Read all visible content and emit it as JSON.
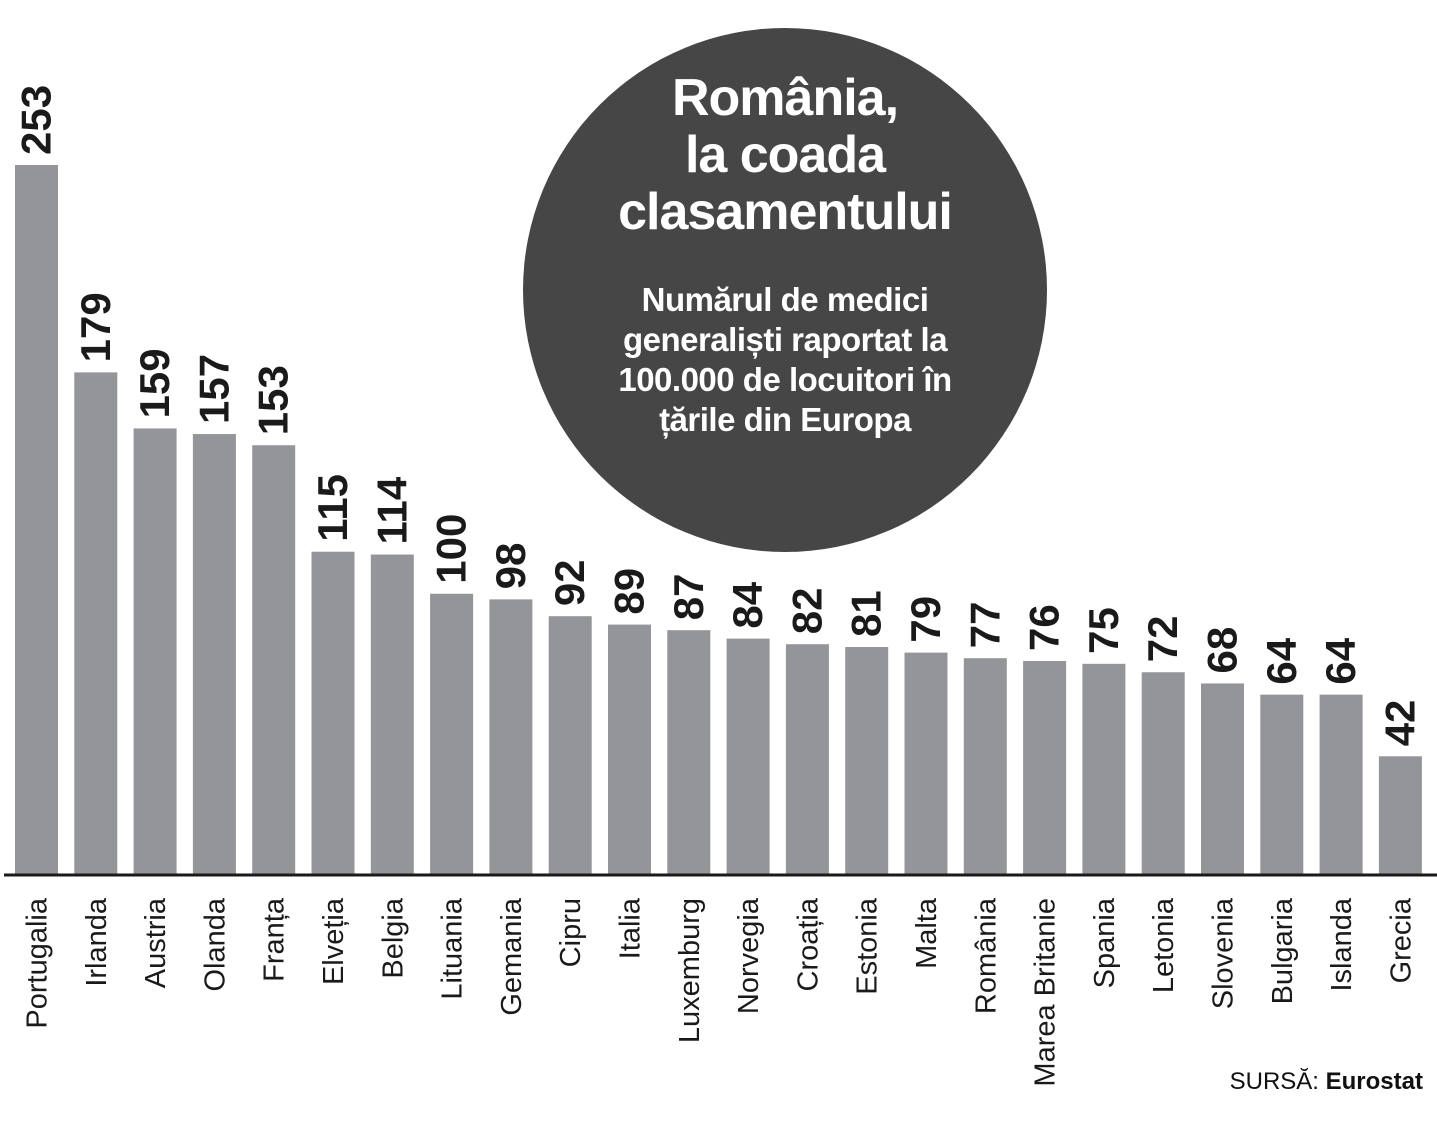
{
  "chart_data": {
    "type": "bar",
    "title": "România, la coada clasamentului",
    "subtitle": "Numărul de medici generaliști raportat la 100.000 de locuitori în țările din Europa",
    "categories": [
      "Portugalia",
      "Irlanda",
      "Austria",
      "Olanda",
      "Franța",
      "Elveția",
      "Belgia",
      "Lituania",
      "Gemania",
      "Cipru",
      "Italia",
      "Luxemburg",
      "Norvegia",
      "Croația",
      "Estonia",
      "Malta",
      "România",
      "Marea Britanie",
      "Spania",
      "Letonia",
      "Slovenia",
      "Bulgaria",
      "Islanda",
      "Grecia"
    ],
    "values": [
      253,
      179,
      159,
      157,
      153,
      115,
      114,
      100,
      98,
      92,
      89,
      87,
      84,
      82,
      81,
      79,
      77,
      76,
      75,
      72,
      68,
      64,
      64,
      42
    ],
    "data_labels": [
      "253",
      "179",
      "159",
      "157",
      "153",
      "115",
      "114",
      "100",
      "98",
      "92",
      "89",
      "87",
      "84",
      "82",
      "81",
      "79",
      "77",
      "76",
      "75",
      "72",
      "68",
      "64",
      "64",
      "42"
    ],
    "ylim": [
      0,
      253
    ],
    "grid": false,
    "bar_color": "#939598",
    "label_color": "#1a1a1a",
    "axis_color": "#1a1a1a"
  },
  "title_lines": [
    "România,",
    "la coada",
    "clasamentului"
  ],
  "subtitle_lines": [
    "Numărul de medici",
    "generaliști raportat la",
    "100.000 de locuitori în",
    "țările din Europa"
  ],
  "circle_color": "#464646",
  "source": {
    "label": "SURSĂ:",
    "name": "Eurostat"
  }
}
